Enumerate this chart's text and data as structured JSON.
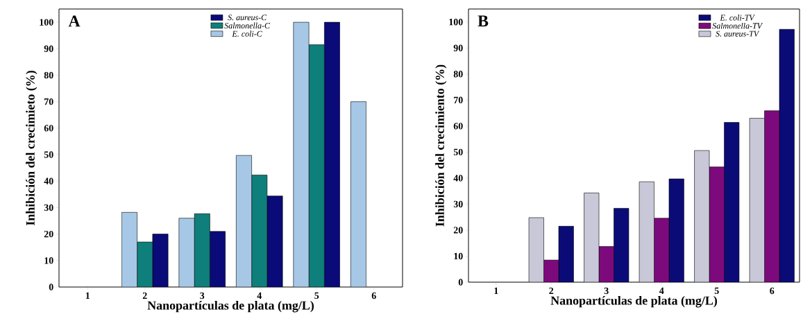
{
  "chart_data": [
    {
      "type": "bar",
      "categories": [
        "1",
        "2",
        "3",
        "4",
        "5",
        "6"
      ],
      "xlabel": "Nanopartículas de plata (mg/L)",
      "ylabel": "Inhibición del crecimieto (%)",
      "annotations": [
        "A"
      ],
      "ylim": [
        0,
        105
      ],
      "yticks": [
        0,
        10,
        20,
        30,
        40,
        50,
        60,
        70,
        80,
        90,
        100
      ],
      "legend": "top",
      "series": [
        {
          "name": "*S. aureus-C*",
          "color": "#0a0a78",
          "values": [
            null,
            20,
            21,
            34.4,
            100,
            null
          ]
        },
        {
          "name": "*Salmonella-C*",
          "color": "#0e7f7b",
          "values": [
            null,
            17,
            27.7,
            42.3,
            91.5,
            null
          ]
        },
        {
          "name": "*E. coli-C*",
          "color": "#a6c8e6",
          "values": [
            null,
            28.2,
            26,
            49.7,
            100,
            70
          ]
        }
      ]
    },
    {
      "type": "bar",
      "categories": [
        "1",
        "2",
        "3",
        "4",
        "5",
        "6"
      ],
      "xlabel": "Nanopartículas de plata (mg/L)",
      "ylabel": "Inhibición del crecimiento (%)",
      "annotations": [
        "B"
      ],
      "ylim": [
        0,
        105
      ],
      "yticks": [
        0,
        10,
        20,
        30,
        40,
        50,
        60,
        70,
        80,
        90,
        100
      ],
      "legend": "top right",
      "series": [
        {
          "name": "*E. coli-TV*",
          "color": "#0b0b78",
          "values": [
            null,
            21.5,
            28.4,
            39.7,
            61.4,
            97.2
          ]
        },
        {
          "name": "*Salmonella-TV*",
          "color": "#7d0a7d",
          "values": [
            null,
            8.5,
            13.7,
            24.6,
            44.3,
            65.9
          ]
        },
        {
          "name": "*S. aureus-TV*",
          "color": "#c8c8d8",
          "values": [
            null,
            24.8,
            34.3,
            38.6,
            50.6,
            63
          ]
        }
      ]
    }
  ]
}
